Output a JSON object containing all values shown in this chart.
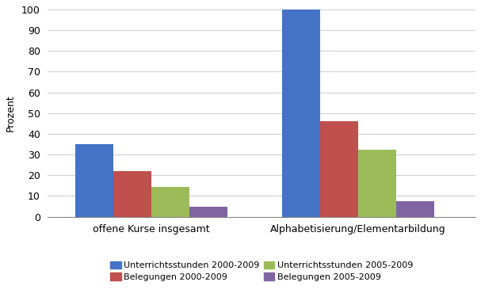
{
  "categories": [
    "offene Kurse insgesamt",
    "Alphabetisierung/Elementarbildung"
  ],
  "series": [
    {
      "label": "Unterrichtsstunden 2000-2009",
      "values": [
        35,
        100
      ],
      "color": "#4472C4"
    },
    {
      "label": "Belegungen 2000-2009",
      "values": [
        22,
        46
      ],
      "color": "#C0504D"
    },
    {
      "label": "Unterrichtsstunden 2005-2009",
      "values": [
        14.5,
        32.5
      ],
      "color": "#9BBB59"
    },
    {
      "label": "Belegungen 2005-2009",
      "values": [
        5,
        7.5
      ],
      "color": "#8064A2"
    }
  ],
  "ylabel": "Prozent",
  "ylim": [
    0,
    100
  ],
  "yticks": [
    0,
    10,
    20,
    30,
    40,
    50,
    60,
    70,
    80,
    90,
    100
  ],
  "background_color": "#FFFFFF",
  "plot_bg_color": "#FFFFFF",
  "grid_color": "#D0D0D0",
  "bar_width": 0.55,
  "group_centers": [
    1.5,
    4.5
  ],
  "xlim": [
    0,
    6.2
  ],
  "legend_ncol": 2,
  "figsize": [
    6.07,
    3.8
  ],
  "dpi": 100
}
